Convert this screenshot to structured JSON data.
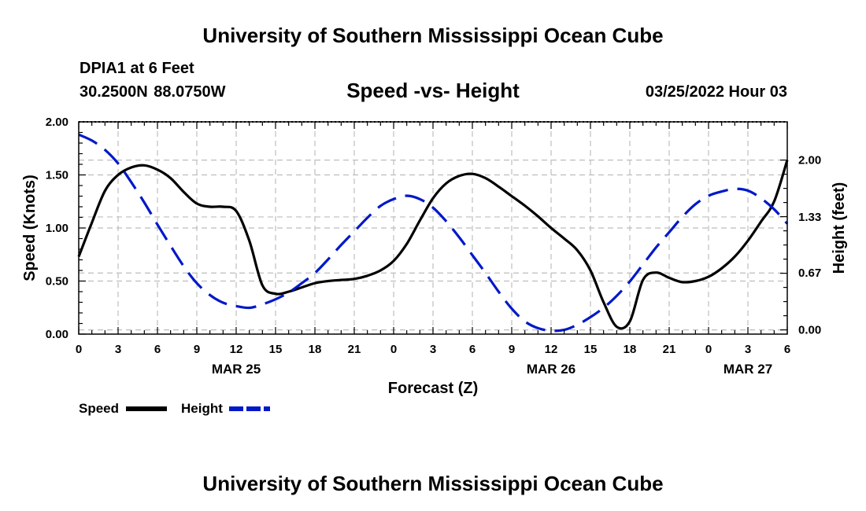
{
  "header": {
    "title": "University of Southern Mississippi Ocean Cube",
    "station": "DPIA1 at 6 Feet",
    "coordinates": "30.2500N  88.0750W",
    "chart_title": "Speed -vs- Height",
    "datetime": "03/25/2022 Hour 03"
  },
  "footer": {
    "title": "University of Southern Mississippi Ocean Cube"
  },
  "colors": {
    "speed": "#000000",
    "height": "#0018c8",
    "grid": "#bdbdbd"
  },
  "chart_data": {
    "type": "line",
    "title": "Speed -vs- Height",
    "xlabel": "Forecast (Z)",
    "ylabel": "Speed (Knots)",
    "y2label": "Height (feet)",
    "xlim": [
      0,
      54
    ],
    "ylim": [
      0,
      2
    ],
    "y2lim": [
      -0.05,
      2.45
    ],
    "x_ticks": [
      0,
      3,
      6,
      9,
      12,
      15,
      18,
      21,
      24,
      27,
      30,
      33,
      36,
      39,
      42,
      45,
      48,
      51,
      54
    ],
    "x_tick_labels": [
      "0",
      "3",
      "6",
      "9",
      "12",
      "15",
      "18",
      "21",
      "0",
      "3",
      "6",
      "9",
      "12",
      "15",
      "18",
      "21",
      "0",
      "3",
      "6"
    ],
    "date_labels": [
      {
        "x": 12,
        "label": "MAR 25"
      },
      {
        "x": 36,
        "label": "MAR 26"
      },
      {
        "x": 51,
        "label": "MAR 27"
      }
    ],
    "y_ticks": [
      0,
      0.5,
      1,
      1.5,
      2
    ],
    "y_tick_labels": [
      "0.00",
      "0.50",
      "1.00",
      "1.50",
      "2.00"
    ],
    "y2_ticks": [
      0,
      0.67,
      1.33,
      2
    ],
    "y2_tick_labels": [
      "0.00",
      "0.67",
      "1.33",
      "2.00"
    ],
    "grid": true,
    "legend": [
      {
        "name": "Speed",
        "style": "solid"
      },
      {
        "name": "Height",
        "style": "dashed"
      }
    ],
    "series": [
      {
        "name": "Speed",
        "axis": "left",
        "points": [
          [
            0,
            0.73
          ],
          [
            1,
            1.05
          ],
          [
            2,
            1.35
          ],
          [
            3,
            1.5
          ],
          [
            4,
            1.57
          ],
          [
            5,
            1.59
          ],
          [
            6,
            1.55
          ],
          [
            7,
            1.47
          ],
          [
            8,
            1.34
          ],
          [
            9,
            1.23
          ],
          [
            10,
            1.2
          ],
          [
            11,
            1.2
          ],
          [
            12,
            1.16
          ],
          [
            13,
            0.88
          ],
          [
            14,
            0.46
          ],
          [
            15,
            0.38
          ],
          [
            16,
            0.4
          ],
          [
            17,
            0.44
          ],
          [
            18,
            0.48
          ],
          [
            19,
            0.5
          ],
          [
            20,
            0.51
          ],
          [
            21,
            0.52
          ],
          [
            22,
            0.55
          ],
          [
            23,
            0.6
          ],
          [
            24,
            0.69
          ],
          [
            25,
            0.85
          ],
          [
            26,
            1.07
          ],
          [
            27,
            1.28
          ],
          [
            28,
            1.42
          ],
          [
            29,
            1.49
          ],
          [
            30,
            1.51
          ],
          [
            31,
            1.47
          ],
          [
            32,
            1.39
          ],
          [
            33,
            1.3
          ],
          [
            34,
            1.21
          ],
          [
            35,
            1.11
          ],
          [
            36,
            1.0
          ],
          [
            37,
            0.9
          ],
          [
            38,
            0.79
          ],
          [
            39,
            0.6
          ],
          [
            40,
            0.3
          ],
          [
            41,
            0.07
          ],
          [
            42,
            0.12
          ],
          [
            43,
            0.51
          ],
          [
            44,
            0.58
          ],
          [
            45,
            0.53
          ],
          [
            46,
            0.49
          ],
          [
            47,
            0.5
          ],
          [
            48,
            0.54
          ],
          [
            49,
            0.62
          ],
          [
            50,
            0.73
          ],
          [
            51,
            0.88
          ],
          [
            52,
            1.06
          ],
          [
            53,
            1.25
          ],
          [
            54,
            1.64
          ]
        ]
      },
      {
        "name": "Height",
        "axis": "right",
        "points": [
          [
            0,
            2.3
          ],
          [
            1,
            2.23
          ],
          [
            2,
            2.12
          ],
          [
            3,
            1.96
          ],
          [
            4,
            1.74
          ],
          [
            5,
            1.5
          ],
          [
            6,
            1.24
          ],
          [
            7,
            0.99
          ],
          [
            8,
            0.75
          ],
          [
            9,
            0.55
          ],
          [
            10,
            0.41
          ],
          [
            11,
            0.32
          ],
          [
            12,
            0.28
          ],
          [
            13,
            0.26
          ],
          [
            14,
            0.3
          ],
          [
            15,
            0.36
          ],
          [
            16,
            0.44
          ],
          [
            17,
            0.55
          ],
          [
            18,
            0.67
          ],
          [
            19,
            0.83
          ],
          [
            20,
            1.0
          ],
          [
            21,
            1.16
          ],
          [
            22,
            1.32
          ],
          [
            23,
            1.46
          ],
          [
            24,
            1.54
          ],
          [
            25,
            1.58
          ],
          [
            26,
            1.54
          ],
          [
            27,
            1.44
          ],
          [
            28,
            1.28
          ],
          [
            29,
            1.09
          ],
          [
            30,
            0.88
          ],
          [
            31,
            0.67
          ],
          [
            32,
            0.45
          ],
          [
            33,
            0.25
          ],
          [
            34,
            0.1
          ],
          [
            35,
            0.02
          ],
          [
            36,
            -0.01
          ],
          [
            37,
            0.0
          ],
          [
            38,
            0.06
          ],
          [
            39,
            0.15
          ],
          [
            40,
            0.26
          ],
          [
            41,
            0.4
          ],
          [
            42,
            0.57
          ],
          [
            43,
            0.77
          ],
          [
            44,
            0.97
          ],
          [
            45,
            1.15
          ],
          [
            46,
            1.33
          ],
          [
            47,
            1.48
          ],
          [
            48,
            1.58
          ],
          [
            49,
            1.63
          ],
          [
            50,
            1.66
          ],
          [
            51,
            1.64
          ],
          [
            52,
            1.55
          ],
          [
            53,
            1.42
          ],
          [
            54,
            1.25
          ]
        ]
      }
    ]
  }
}
